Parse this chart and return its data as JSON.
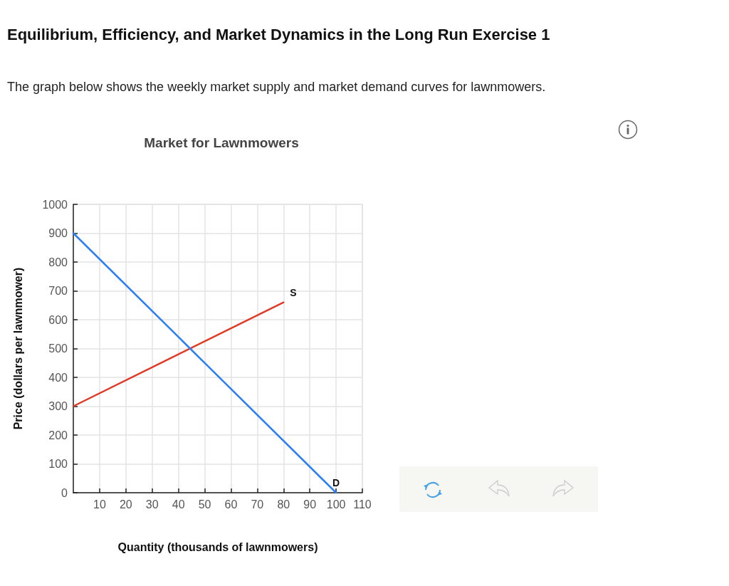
{
  "chart_data": {
    "type": "line",
    "title": "Market for Lawnmowers",
    "xlabel": "Quantity (thousands of lawnmowers)",
    "ylabel": "Price (dollars per lawnmower)",
    "annotations": [
      "Equilibrium, Efficiency, and Market Dynamics in the Long Run Exercise 1",
      "The graph below shows the weekly market supply and market demand curves for lawnmowers."
    ],
    "series": [
      {
        "name": "S",
        "color": "#e03a24",
        "x": [
          0,
          80
        ],
        "values": [
          300,
          660
        ]
      },
      {
        "name": "D",
        "color": "#2b7ff6",
        "x": [
          0,
          100
        ],
        "values": [
          900,
          0
        ]
      }
    ],
    "xlim": [
      0,
      110
    ],
    "xticks": [
      10,
      20,
      30,
      40,
      50,
      60,
      70,
      80,
      90,
      100,
      110
    ],
    "ylim": [
      0,
      1000
    ],
    "yticks": [
      0,
      100,
      200,
      300,
      400,
      500,
      600,
      700,
      800,
      900,
      1000
    ],
    "grid": true,
    "marker": "none",
    "line_style": "solid"
  }
}
